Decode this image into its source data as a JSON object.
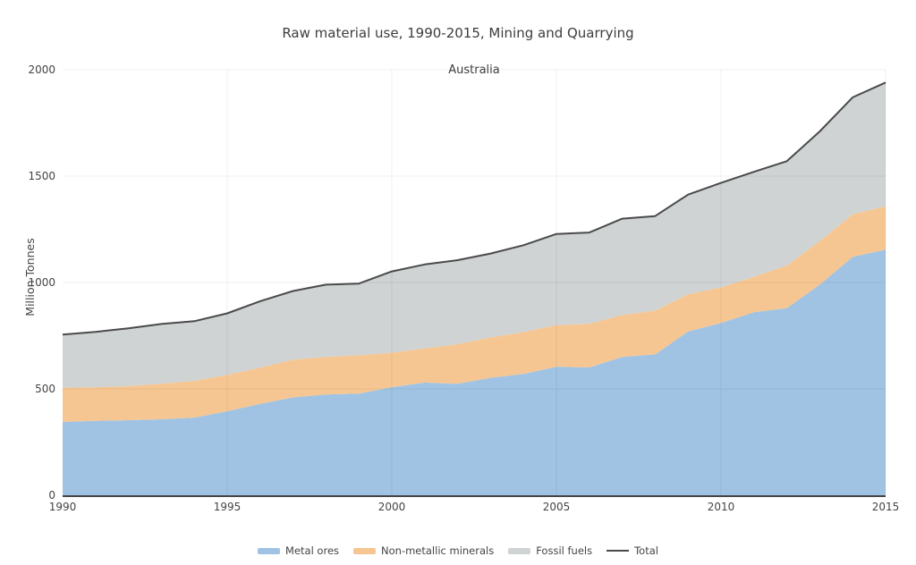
{
  "header": {
    "title": "Raw material use, 1990-2015, Mining and Quarrying",
    "subtitle": "Australia"
  },
  "chart_data": {
    "type": "area",
    "stacked": true,
    "title": "Raw material use, 1990-2015, Mining and Quarrying",
    "subtitle": "Australia",
    "xlabel": "",
    "ylabel": "Million Tonnes",
    "x": [
      1990,
      1991,
      1992,
      1993,
      1994,
      1995,
      1996,
      1997,
      1998,
      1999,
      2000,
      2001,
      2002,
      2003,
      2004,
      2005,
      2006,
      2007,
      2008,
      2009,
      2010,
      2011,
      2012,
      2013,
      2014,
      2015
    ],
    "series": [
      {
        "name": "Metal ores",
        "kind": "area",
        "color": "#a0c3e3",
        "values": [
          345,
          350,
          353,
          357,
          365,
          395,
          430,
          460,
          474,
          478,
          508,
          530,
          524,
          552,
          570,
          604,
          601,
          650,
          662,
          770,
          810,
          860,
          880,
          990,
          1120,
          1155
        ]
      },
      {
        "name": "Non-metallic minerals",
        "kind": "area",
        "color": "#f6c692",
        "values": [
          160,
          158,
          160,
          168,
          173,
          171,
          170,
          177,
          176,
          180,
          162,
          160,
          186,
          190,
          197,
          196,
          205,
          197,
          206,
          175,
          167,
          167,
          200,
          205,
          201,
          203
        ]
      },
      {
        "name": "Fossil fuels",
        "kind": "area",
        "color": "#cfd3d3",
        "values": [
          250,
          260,
          272,
          280,
          280,
          289,
          312,
          323,
          340,
          337,
          382,
          395,
          395,
          394,
          408,
          428,
          429,
          453,
          444,
          468,
          491,
          493,
          490,
          515,
          549,
          582
        ]
      },
      {
        "name": "Total",
        "kind": "line",
        "color": "#4a4a4a",
        "values": [
          755,
          768,
          785,
          805,
          818,
          855,
          912,
          960,
          990,
          995,
          1052,
          1085,
          1105,
          1136,
          1175,
          1228,
          1235,
          1300,
          1312,
          1413,
          1468,
          1520,
          1570,
          1710,
          1870,
          1940
        ]
      }
    ],
    "xlim": [
      1990,
      2015
    ],
    "ylim": [
      0,
      2000
    ],
    "xticks": [
      "1990",
      "1995",
      "2000",
      "2005",
      "2010",
      "2015"
    ],
    "yticks": [
      "0",
      "500",
      "1000",
      "1500",
      "2000"
    ],
    "grid": true,
    "legend_position": "bottom",
    "style": {
      "grid_color": "rgba(0,0,0,0.06)",
      "axis_color": "#444444",
      "text_color": "#444444",
      "background": "#ffffff"
    }
  }
}
